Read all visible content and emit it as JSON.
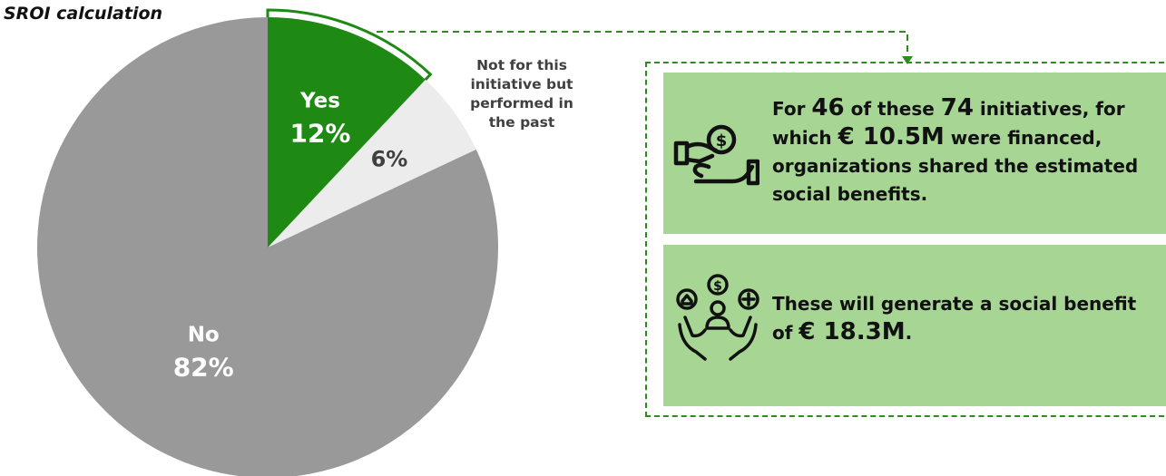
{
  "title": "SROI calculation",
  "chart_data": {
    "type": "pie",
    "title": "SROI calculation",
    "slices": [
      {
        "label": "Yes",
        "value": 12,
        "value_label": "12%",
        "color": "#1e8a14"
      },
      {
        "label": "Not for this initiative but performed in the past",
        "value": 6,
        "value_label": "6%",
        "color": "#ececec"
      },
      {
        "label": "No",
        "value": 82,
        "value_label": "82%",
        "color": "#999999"
      }
    ]
  },
  "outside_label_lines": [
    "Not for this",
    "initiative but",
    "performed in",
    "the past"
  ],
  "panels": {
    "top": {
      "t1": "For ",
      "n1": "46",
      "t2": " of these ",
      "n2": "74",
      "t3": " initiatives, for which ",
      "n3": "€ 10.5M",
      "t4": " were financed, organizations shared the estimated social benefits.",
      "icon": "money-hand-icon"
    },
    "bottom": {
      "t1": "These will generate a social benefit of ",
      "n1": "€ 18.3M",
      "t2": ".",
      "icon": "social-benefit-hands-icon"
    }
  },
  "colors": {
    "accent_green": "#1e8a14",
    "panel_green": "#a6d594",
    "dash_green": "#2e8b1e",
    "grey": "#999999",
    "light_grey": "#ececec"
  }
}
